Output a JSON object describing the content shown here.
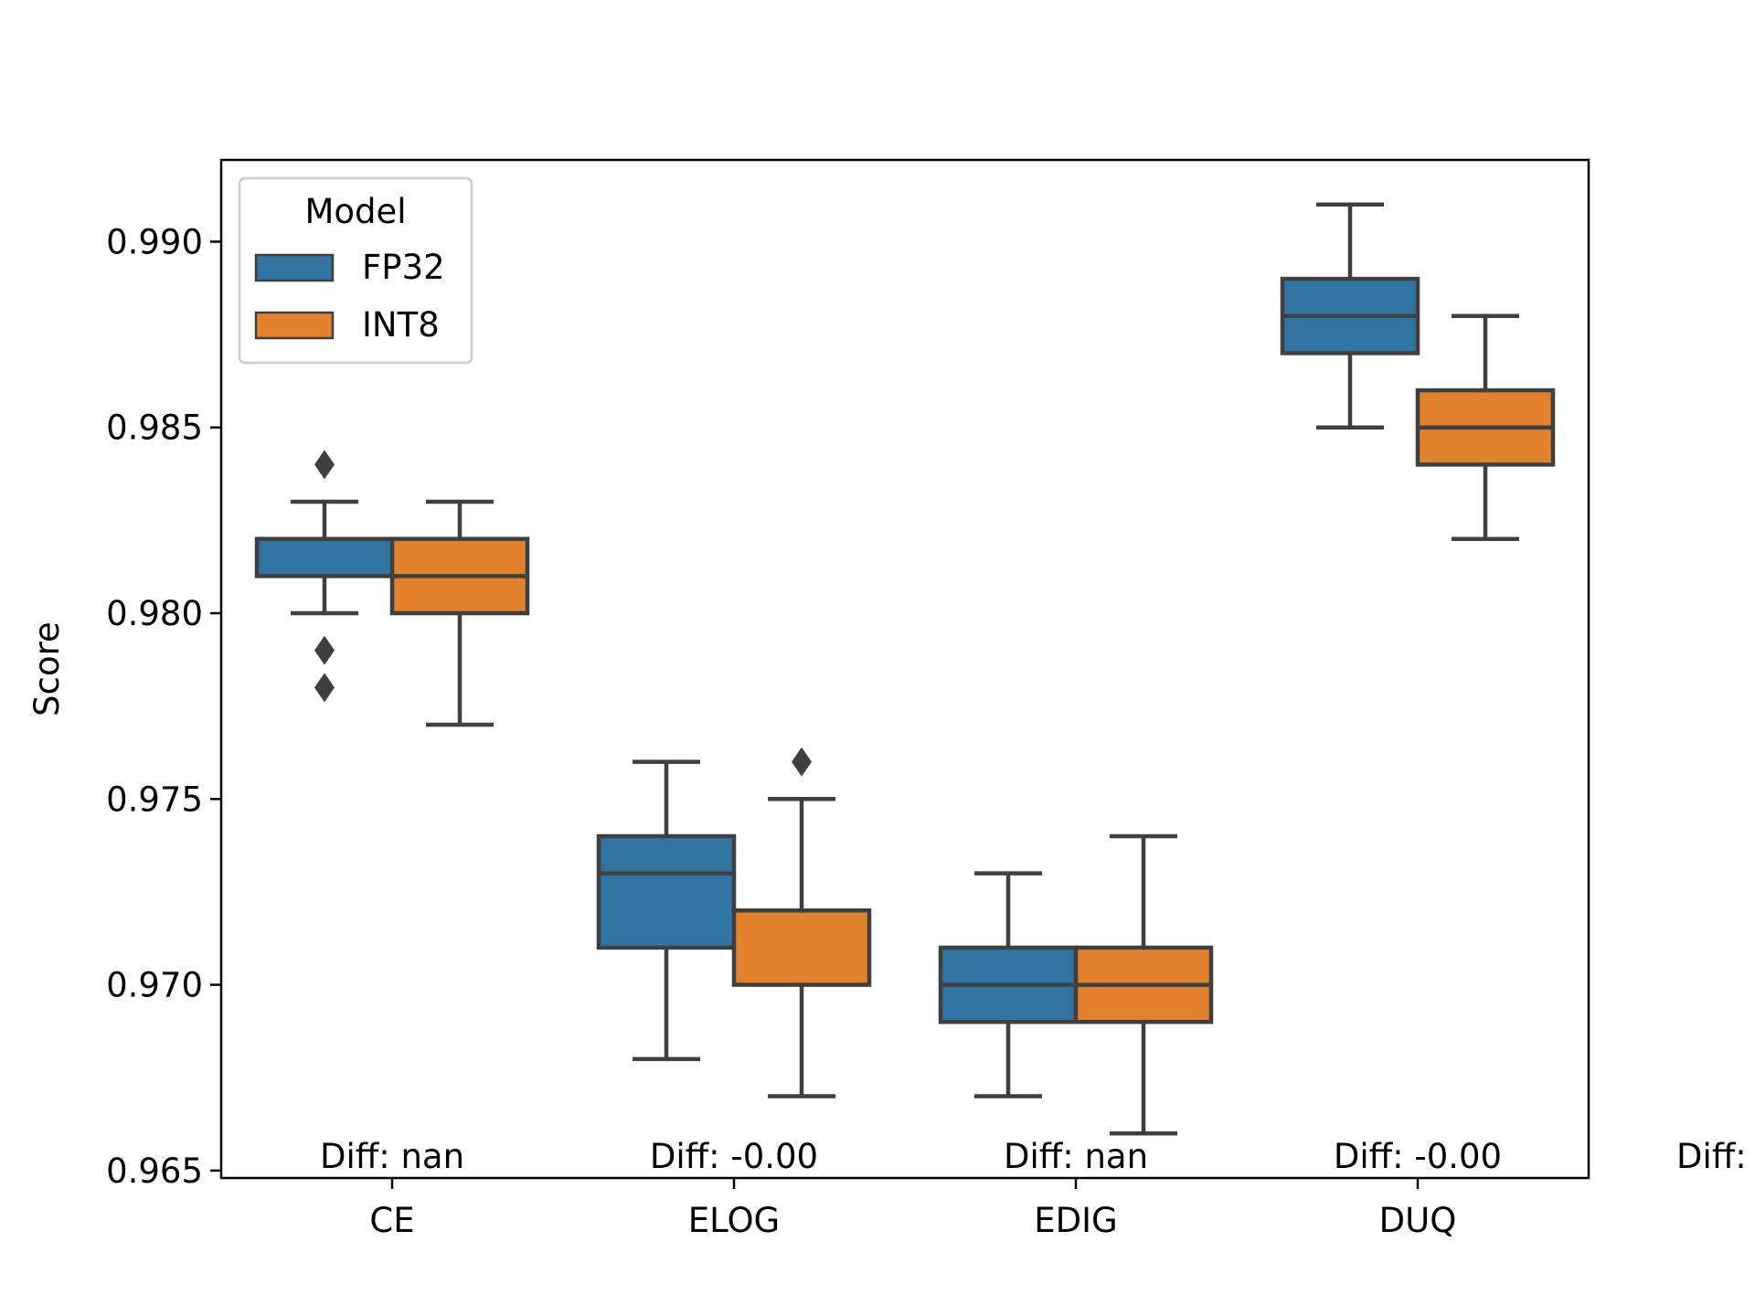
{
  "chart_data": {
    "type": "box",
    "categories": [
      "CE",
      "ELOG",
      "EDIG",
      "DUQ"
    ],
    "ylabel": "Score",
    "xlabel": "",
    "ylim": [
      0.9648,
      0.9922
    ],
    "yticks": [
      0.965,
      0.97,
      0.975,
      0.98,
      0.985,
      0.99
    ],
    "ytick_labels": [
      "0.965",
      "0.970",
      "0.975",
      "0.980",
      "0.985",
      "0.990"
    ],
    "grid": false,
    "legend": {
      "title": "Model",
      "placement": "top-left",
      "entries": [
        "FP32",
        "INT8"
      ]
    },
    "series": [
      {
        "name": "FP32",
        "color": "#3274a1",
        "boxes": [
          {
            "category": "CE",
            "whisker_low": 0.98,
            "q1": 0.981,
            "median": 0.982,
            "q3": 0.982,
            "whisker_high": 0.983,
            "outliers": [
              0.984,
              0.979,
              0.978
            ]
          },
          {
            "category": "ELOG",
            "whisker_low": 0.968,
            "q1": 0.971,
            "median": 0.973,
            "q3": 0.974,
            "whisker_high": 0.976,
            "outliers": []
          },
          {
            "category": "EDIG",
            "whisker_low": 0.967,
            "q1": 0.969,
            "median": 0.97,
            "q3": 0.971,
            "whisker_high": 0.973,
            "outliers": []
          },
          {
            "category": "DUQ",
            "whisker_low": 0.985,
            "q1": 0.987,
            "median": 0.988,
            "q3": 0.989,
            "whisker_high": 0.991,
            "outliers": []
          }
        ]
      },
      {
        "name": "INT8",
        "color": "#e1812c",
        "boxes": [
          {
            "category": "CE",
            "whisker_low": 0.977,
            "q1": 0.98,
            "median": 0.981,
            "q3": 0.982,
            "whisker_high": 0.983,
            "outliers": []
          },
          {
            "category": "ELOG",
            "whisker_low": 0.967,
            "q1": 0.97,
            "median": 0.972,
            "q3": 0.972,
            "whisker_high": 0.975,
            "outliers": [
              0.976
            ]
          },
          {
            "category": "EDIG",
            "whisker_low": 0.966,
            "q1": 0.969,
            "median": 0.97,
            "q3": 0.971,
            "whisker_high": 0.974,
            "outliers": []
          },
          {
            "category": "DUQ",
            "whisker_low": 0.982,
            "q1": 0.984,
            "median": 0.985,
            "q3": 0.986,
            "whisker_high": 0.988,
            "outliers": []
          }
        ]
      }
    ],
    "annotations": [
      "Diff: nan",
      "Diff: -0.00",
      "Diff: nan",
      "Diff: -0.00",
      "Diff:"
    ],
    "colors": {
      "edge": "#3f3f3f",
      "axis": "#000000"
    }
  }
}
